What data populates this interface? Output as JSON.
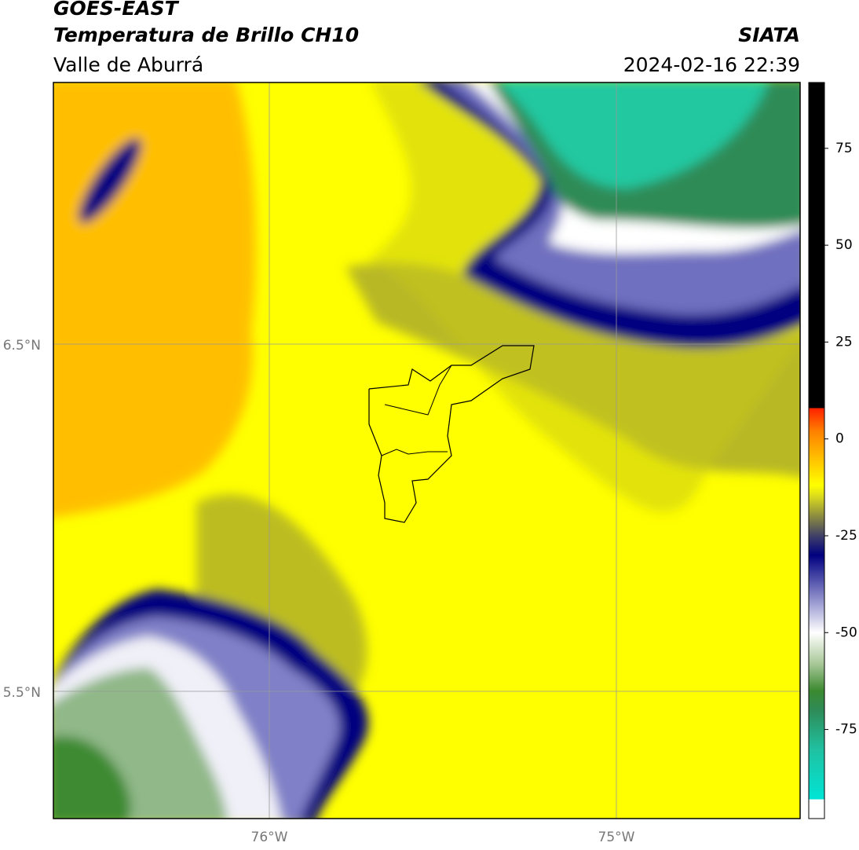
{
  "header": {
    "title": "GOES-EAST",
    "subtitle": "Temperatura de Brillo CH10",
    "region": "Valle de Aburrá",
    "source": "SIATA",
    "datetime": "2024-02-16 22:39"
  },
  "map": {
    "lon_labels": [
      "76°W",
      "75°W"
    ],
    "lat_labels": [
      "6.5°N",
      "5.5°N"
    ]
  },
  "colorbar": {
    "lim": [
      -98,
      92
    ],
    "ticks": [
      75,
      50,
      25,
      0,
      -25,
      -50,
      -75
    ],
    "stops": [
      {
        "value": -98,
        "color": "#ffffff"
      },
      {
        "value": -93,
        "color": "#ffffff"
      },
      {
        "value": -93,
        "color": "#00e5d6"
      },
      {
        "value": -80,
        "color": "#20c0a0"
      },
      {
        "value": -70,
        "color": "#2e8b57"
      },
      {
        "value": -65,
        "color": "#3c8a30"
      },
      {
        "value": -58,
        "color": "#a8c898"
      },
      {
        "value": -50,
        "color": "#ffffff"
      },
      {
        "value": -42,
        "color": "#9898d0"
      },
      {
        "value": -30,
        "color": "#000080"
      },
      {
        "value": -25,
        "color": "#404068"
      },
      {
        "value": -20,
        "color": "#8a8a40"
      },
      {
        "value": -15,
        "color": "#d8d820"
      },
      {
        "value": -12,
        "color": "#ffff00"
      },
      {
        "value": -5,
        "color": "#ffc000"
      },
      {
        "value": 2,
        "color": "#ff8000"
      },
      {
        "value": 8,
        "color": "#ff2000"
      },
      {
        "value": 8,
        "color": "#000000"
      },
      {
        "value": 92,
        "color": "#000000"
      }
    ]
  }
}
